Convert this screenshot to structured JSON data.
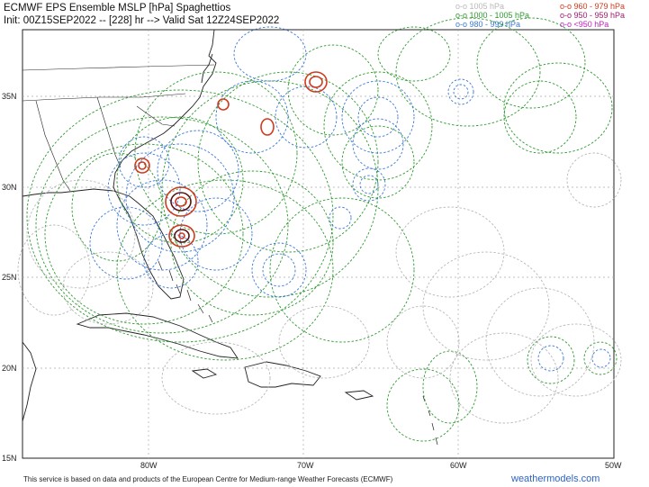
{
  "title": {
    "line1": "ECMWF EPS Ensemble MSLP [hPa] Spaghettios",
    "line2": "Init: 00Z15SEP2022 -- [228] hr --> Valid Sat 12Z24SEP2022"
  },
  "legend": {
    "col1": [
      {
        "label": "o-o 1005 hPa",
        "color": "#b8b8b8"
      },
      {
        "label": "o-o 1000 - 1005 hPa",
        "color": "#2e9a2e"
      },
      {
        "label": "o-o 980 - 999 hPa",
        "color": "#3a78d8"
      }
    ],
    "col2": [
      {
        "label": "o-o 960 - 979 hPa",
        "color": "#d03a1e"
      },
      {
        "label": "o-o 950 - 959 hPa",
        "color": "#a01a6a"
      },
      {
        "label": "o-o <950 hPa",
        "color": "#c020c0"
      }
    ]
  },
  "axes": {
    "lon_labels": [
      "80W",
      "70W",
      "60W",
      "50W"
    ],
    "lat_labels": [
      "35N",
      "30N",
      "25N",
      "20N",
      "15N"
    ]
  },
  "footer": "This service is based on data and products of the European Centre for Medium-range Weather Forecasts (ECMWF)",
  "brand": "weathermodels.com",
  "colors": {
    "gray": "#b8b8b8",
    "green": "#2e9a2e",
    "blue": "#3a78d8",
    "red": "#d03a1e",
    "dark": "#5a1010",
    "coast": "#222222",
    "grid": "#aaaaaa"
  }
}
